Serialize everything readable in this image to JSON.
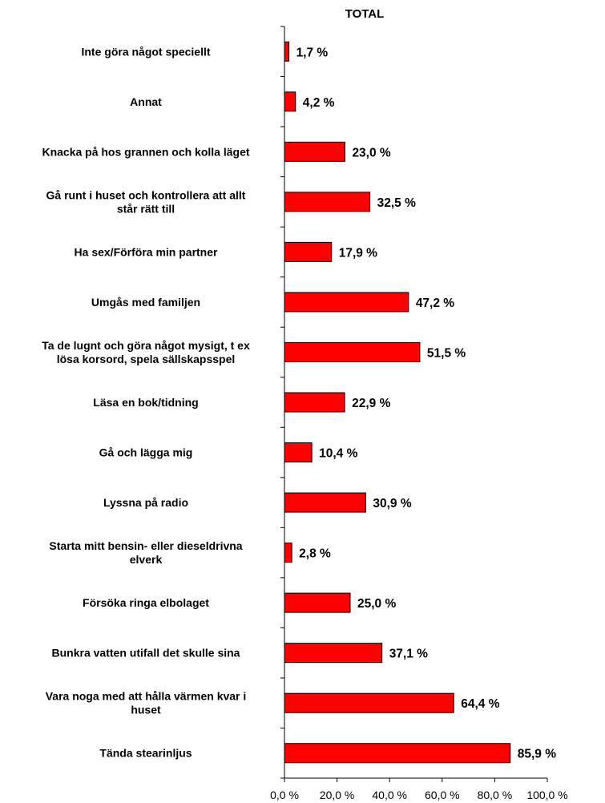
{
  "chart_data": {
    "type": "bar",
    "orientation": "horizontal",
    "title": "TOTAL",
    "categories": [
      "Inte göra något speciellt",
      "Annat",
      "Knacka på hos grannen och kolla läget",
      "Gå runt i huset och kontrollera att allt står rätt till",
      "Ha sex/Förföra min partner",
      "Umgås med familjen",
      "Ta de lugnt och göra något mysigt, t ex lösa korsord, spela sällskapsspel",
      "Läsa en bok/tidning",
      "Gå och lägga mig",
      "Lyssna på radio",
      "Starta mitt bensin- eller dieseldrivna elverk",
      "Försöka ringa elbolaget",
      "Bunkra vatten utifall det skulle sina",
      "Vara noga med att hålla värmen kvar i huset",
      "Tända stearinljus"
    ],
    "category_lines": [
      [
        "Inte göra något speciellt"
      ],
      [
        "Annat"
      ],
      [
        "Knacka på hos grannen och kolla läget"
      ],
      [
        "Gå runt i huset och kontrollera att allt",
        "står rätt till"
      ],
      [
        "Ha sex/Förföra min partner"
      ],
      [
        "Umgås med familjen"
      ],
      [
        "Ta de lugnt och göra något mysigt, t ex",
        "lösa korsord, spela sällskapsspel"
      ],
      [
        "Läsa en bok/tidning"
      ],
      [
        "Gå och lägga mig"
      ],
      [
        "Lyssna på radio"
      ],
      [
        "Starta mitt bensin- eller dieseldrivna",
        "elverk"
      ],
      [
        "Försöka ringa elbolaget"
      ],
      [
        "Bunkra vatten utifall det skulle sina"
      ],
      [
        "Vara noga med att hålla värmen kvar i",
        "huset"
      ],
      [
        "Tända stearinljus"
      ]
    ],
    "values": [
      1.7,
      4.2,
      23.0,
      32.5,
      17.9,
      47.2,
      51.5,
      22.9,
      10.4,
      30.9,
      2.8,
      25.0,
      37.1,
      64.4,
      85.9
    ],
    "value_labels": [
      "1,7 %",
      "4,2 %",
      "23,0 %",
      "32,5 %",
      "17,9 %",
      "47,2 %",
      "51,5 %",
      "22,9 %",
      "10,4 %",
      "30,9 %",
      "2,8 %",
      "25,0 %",
      "37,1 %",
      "64,4 %",
      "85,9 %"
    ],
    "xlim": [
      0,
      100
    ],
    "x_ticks": [
      0,
      20,
      40,
      60,
      80,
      100
    ],
    "x_tick_labels": [
      "0,0 %",
      "20,0 %",
      "40,0 %",
      "60,0 %",
      "80,0 %",
      "100,0 %"
    ],
    "xlabel": "",
    "ylabel": "",
    "grid": false,
    "legend": "none",
    "bar_color": "#ff0000",
    "bar_edge_color": "#000000"
  }
}
